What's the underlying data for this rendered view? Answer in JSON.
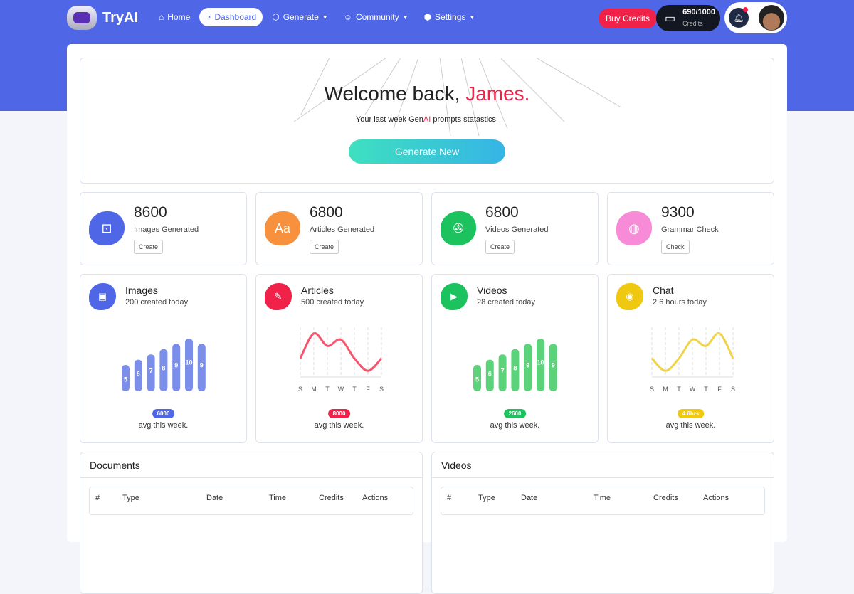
{
  "brand": "TryAI",
  "nav": [
    {
      "label": "Home",
      "icon": "home-icon"
    },
    {
      "label": "Dashboard",
      "icon": "gauge-icon",
      "active": true
    },
    {
      "label": "Generate",
      "icon": "image-icon",
      "dropdown": true
    },
    {
      "label": "Community",
      "icon": "community-icon",
      "dropdown": true
    },
    {
      "label": "Settings",
      "icon": "gear-icon",
      "dropdown": true
    }
  ],
  "header": {
    "buy": "Buy Credits",
    "credits_value": "690/1000",
    "credits_label": "Credits"
  },
  "welcome": {
    "greeting": "Welcome back, ",
    "name": "James.",
    "sub_pre": "Your last week Gen",
    "sub_ai": "AI",
    "sub_post": " prompts statastics.",
    "button": "Generate New"
  },
  "stats": [
    {
      "value": "8600",
      "label": "Images Generated",
      "button": "Create",
      "color": "#4f67e6",
      "icon": "⊡"
    },
    {
      "value": "6800",
      "label": "Articles Generated",
      "button": "Create",
      "color": "#f7913d",
      "icon": "Aa"
    },
    {
      "value": "6800",
      "label": "Videos Generated",
      "button": "Create",
      "color": "#1cc25e",
      "icon": "✇"
    },
    {
      "value": "9300",
      "label": "Grammar Check",
      "button": "Check",
      "color": "#f78bd8",
      "icon": "◍"
    }
  ],
  "chart_data": [
    {
      "type": "bar",
      "title": "Images",
      "subtitle": "200 created today",
      "values": [
        5,
        6,
        7,
        8,
        9,
        10,
        9
      ],
      "color": "#7b8ee9",
      "badge": "6000",
      "badge_color": "#4f67e6",
      "footer": "avg this week.",
      "icon": "▣",
      "icon_color": "#4f67e6"
    },
    {
      "type": "line",
      "title": "Articles",
      "subtitle": "500 created today",
      "categories": [
        "S",
        "M",
        "T",
        "W",
        "T",
        "F",
        "S"
      ],
      "values": [
        3,
        7,
        5,
        6,
        3,
        1,
        3
      ],
      "color": "#f7546e",
      "badge": "8000",
      "badge_color": "#f0224a",
      "footer": "avg this week.",
      "icon": "✎",
      "icon_color": "#f0224a"
    },
    {
      "type": "bar",
      "title": "Videos",
      "subtitle": "28 created today",
      "values": [
        5,
        6,
        7,
        8,
        9,
        10,
        9
      ],
      "color": "#5cd27a",
      "badge": "2600",
      "badge_color": "#1cc25e",
      "footer": "avg this week.",
      "icon": "▶",
      "icon_color": "#1cc25e"
    },
    {
      "type": "line",
      "title": "Chat",
      "subtitle": "2.6 hours today",
      "categories": [
        "S",
        "M",
        "T",
        "W",
        "T",
        "F",
        "S"
      ],
      "values": [
        3,
        1,
        3,
        6,
        5,
        7,
        3
      ],
      "color": "#efd34a",
      "badge": "4.6hrs",
      "badge_color": "#eec811",
      "footer": "avg this week.",
      "icon": "◉",
      "icon_color": "#eec811"
    }
  ],
  "tables": [
    {
      "title": "Documents",
      "columns": [
        "#",
        "Type",
        "Date",
        "Time",
        "Credits",
        "Actions"
      ]
    },
    {
      "title": "Videos",
      "columns": [
        "#",
        "Type",
        "Date",
        "Time",
        "Credits",
        "Actions"
      ]
    }
  ]
}
